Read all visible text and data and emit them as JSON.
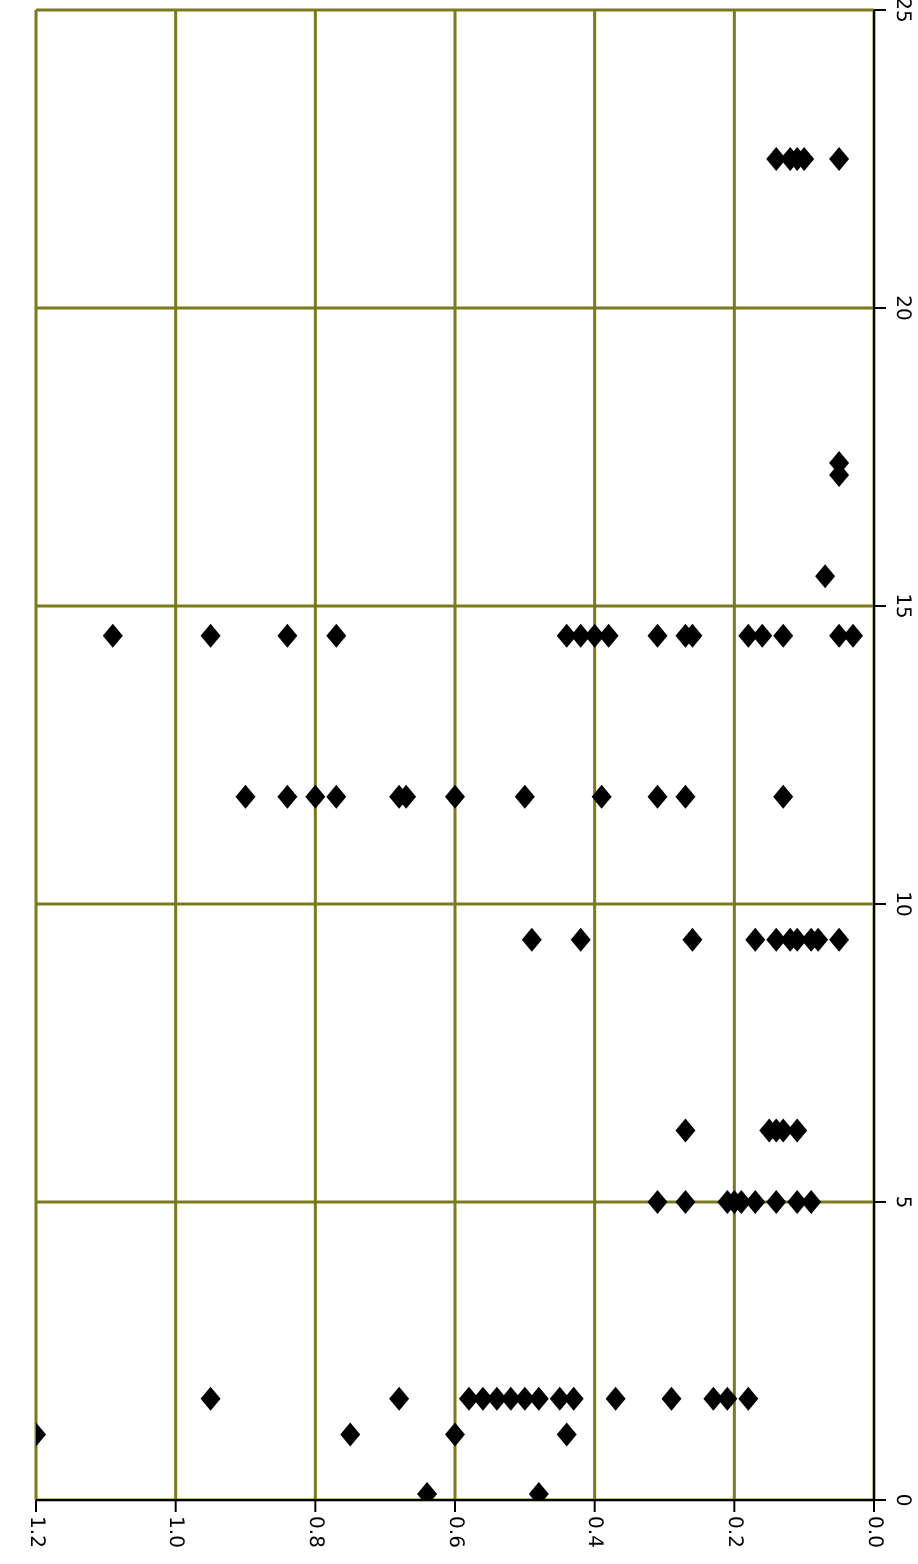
{
  "chart_data": {
    "type": "scatter",
    "xlim": [
      1.2,
      0
    ],
    "xticks": [
      1.2,
      {
        "value": 1,
        "label": "1.0"
      },
      0.8,
      0.6,
      0.4,
      0.2,
      {
        "value": 0,
        "label": "0.0"
      }
    ],
    "ylim": [
      0,
      25
    ],
    "yticks": [
      0,
      5,
      10,
      15,
      20,
      25
    ],
    "grid": true,
    "marker": "diamond",
    "series": [
      {
        "color": "#000000",
        "x": [
          0.95,
          0.68,
          0.58,
          0.56,
          0.54,
          0.52,
          0.5,
          0.48,
          0.45,
          0.43,
          0.37,
          0.29,
          0.23,
          0.21,
          0.18,
          1.2,
          0.75,
          0.6,
          0.44,
          0.64,
          0.48,
          0.31,
          0.27,
          0.21,
          0.2,
          0.19,
          0.17,
          0.14,
          0.11,
          0.09,
          0.27,
          0.15,
          0.14,
          0.13,
          0.11,
          0.49,
          0.42,
          0.26,
          0.17,
          0.14,
          0.12,
          0.11,
          0.09,
          0.08,
          0.05,
          0.9,
          0.84,
          0.8,
          0.77,
          0.68,
          0.67,
          0.6,
          0.5,
          0.39,
          0.31,
          0.27,
          0.13,
          1.09,
          0.95,
          0.84,
          0.77,
          0.44,
          0.42,
          0.4,
          0.38,
          0.31,
          0.27,
          0.26,
          0.18,
          0.16,
          0.13,
          0.05,
          0.03,
          0.07,
          0.05,
          0.05,
          0.14,
          0.12,
          0.11,
          0.1,
          0.05
        ],
        "values": [
          1.7,
          1.7,
          1.7,
          1.7,
          1.7,
          1.7,
          1.7,
          1.7,
          1.7,
          1.7,
          1.7,
          1.7,
          1.7,
          1.7,
          1.7,
          1.1,
          1.1,
          1.1,
          1.1,
          0.1,
          0.1,
          5,
          5,
          5,
          5,
          5,
          5,
          5,
          5,
          5,
          6.2,
          6.2,
          6.2,
          6.2,
          6.2,
          9.4,
          9.4,
          9.4,
          9.4,
          9.4,
          9.4,
          9.4,
          9.4,
          9.4,
          9.4,
          11.8,
          11.8,
          11.8,
          11.8,
          11.8,
          11.8,
          11.8,
          11.8,
          11.8,
          11.8,
          11.8,
          11.8,
          14.5,
          14.5,
          14.5,
          14.5,
          14.5,
          14.5,
          14.5,
          14.5,
          14.5,
          14.5,
          14.5,
          14.5,
          14.5,
          14.5,
          14.5,
          14.5,
          15.5,
          17.4,
          17.2,
          22.5,
          22.5,
          22.5,
          22.5,
          22.5
        ]
      }
    ]
  }
}
